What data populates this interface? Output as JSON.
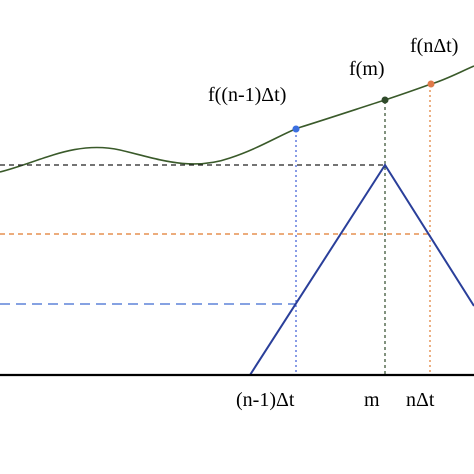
{
  "labels": {
    "f_prev": "f((n-1)Δt)",
    "f_m": "f(m)",
    "f_next": "f(nΔt)",
    "x_prev": "(n-1)Δt",
    "x_m": "m",
    "x_next": "nΔt"
  },
  "colors": {
    "curve": "#3a5a2a",
    "triangle": "#2a3f9a",
    "axis": "#000000",
    "guide_black": "#222222",
    "guide_orange": "#e07a2e",
    "guide_blue_dotted": "#3b5bd6",
    "guide_blue_dashed": "#3d6ad0",
    "point_prev": "#3b6fe0",
    "point_m": "#2f4a2a",
    "point_next": "#e07a4a"
  }
}
